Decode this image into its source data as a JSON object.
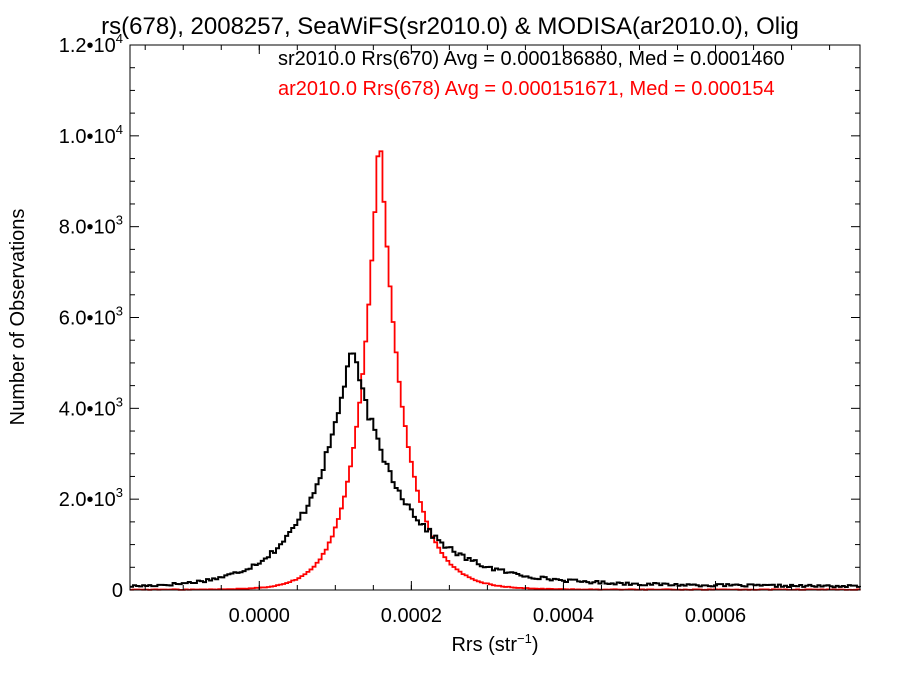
{
  "chart_data": {
    "type": "line",
    "title": "rs(678), 2008257, SeaWiFS(sr2010.0) & MODISA(ar2010.0), Olig",
    "xlabel": "Rrs (str",
    "xlabel_exp": "−1",
    "xlabel_suffix": ")",
    "ylabel": "Number of Observations",
    "xlim": [
      -0.00017,
      0.00079
    ],
    "ylim": [
      0,
      12000
    ],
    "x_ticks": [
      {
        "value": 0.0,
        "label": "0.0000"
      },
      {
        "value": 0.0002,
        "label": "0.0002"
      },
      {
        "value": 0.0004,
        "label": "0.0004"
      },
      {
        "value": 0.0006,
        "label": "0.0006"
      }
    ],
    "y_ticks": [
      {
        "value": 0,
        "mant": "0",
        "exp": ""
      },
      {
        "value": 2000,
        "mant": "2.0•10",
        "exp": "3"
      },
      {
        "value": 4000,
        "mant": "4.0•10",
        "exp": "3"
      },
      {
        "value": 6000,
        "mant": "6.0•10",
        "exp": "3"
      },
      {
        "value": 8000,
        "mant": "8.0•10",
        "exp": "3"
      },
      {
        "value": 10000,
        "mant": "1.0•10",
        "exp": "4"
      },
      {
        "value": 12000,
        "mant": "1.2•10",
        "exp": "4"
      }
    ],
    "grid": false,
    "legend_position": "top-right",
    "series": [
      {
        "name": "sr2010.0 Rrs(670) Avg = 0.000186880, Med = 0.0001460",
        "color": "#000000",
        "shape": {
          "peak_x": 0.000118,
          "peak_y": 5200,
          "width_left": 6.2e-05,
          "width_right": 7.5e-05,
          "tail_amp": 230,
          "tail_scale": 0.00028,
          "baseline_left": 60,
          "jitter": 280
        }
      },
      {
        "name": "ar2010.0 Rrs(678) Avg = 0.000151671, Med = 0.000154",
        "color": "#ff0000",
        "shape": {
          "peak_x": 0.000156,
          "peak_y": 10250,
          "width_left": 3.3e-05,
          "width_right": 3.7e-05,
          "tail_amp": 25,
          "tail_scale": 0.00012,
          "baseline_left": 8,
          "jitter": 90
        }
      }
    ],
    "bin_width": 4e-06
  }
}
